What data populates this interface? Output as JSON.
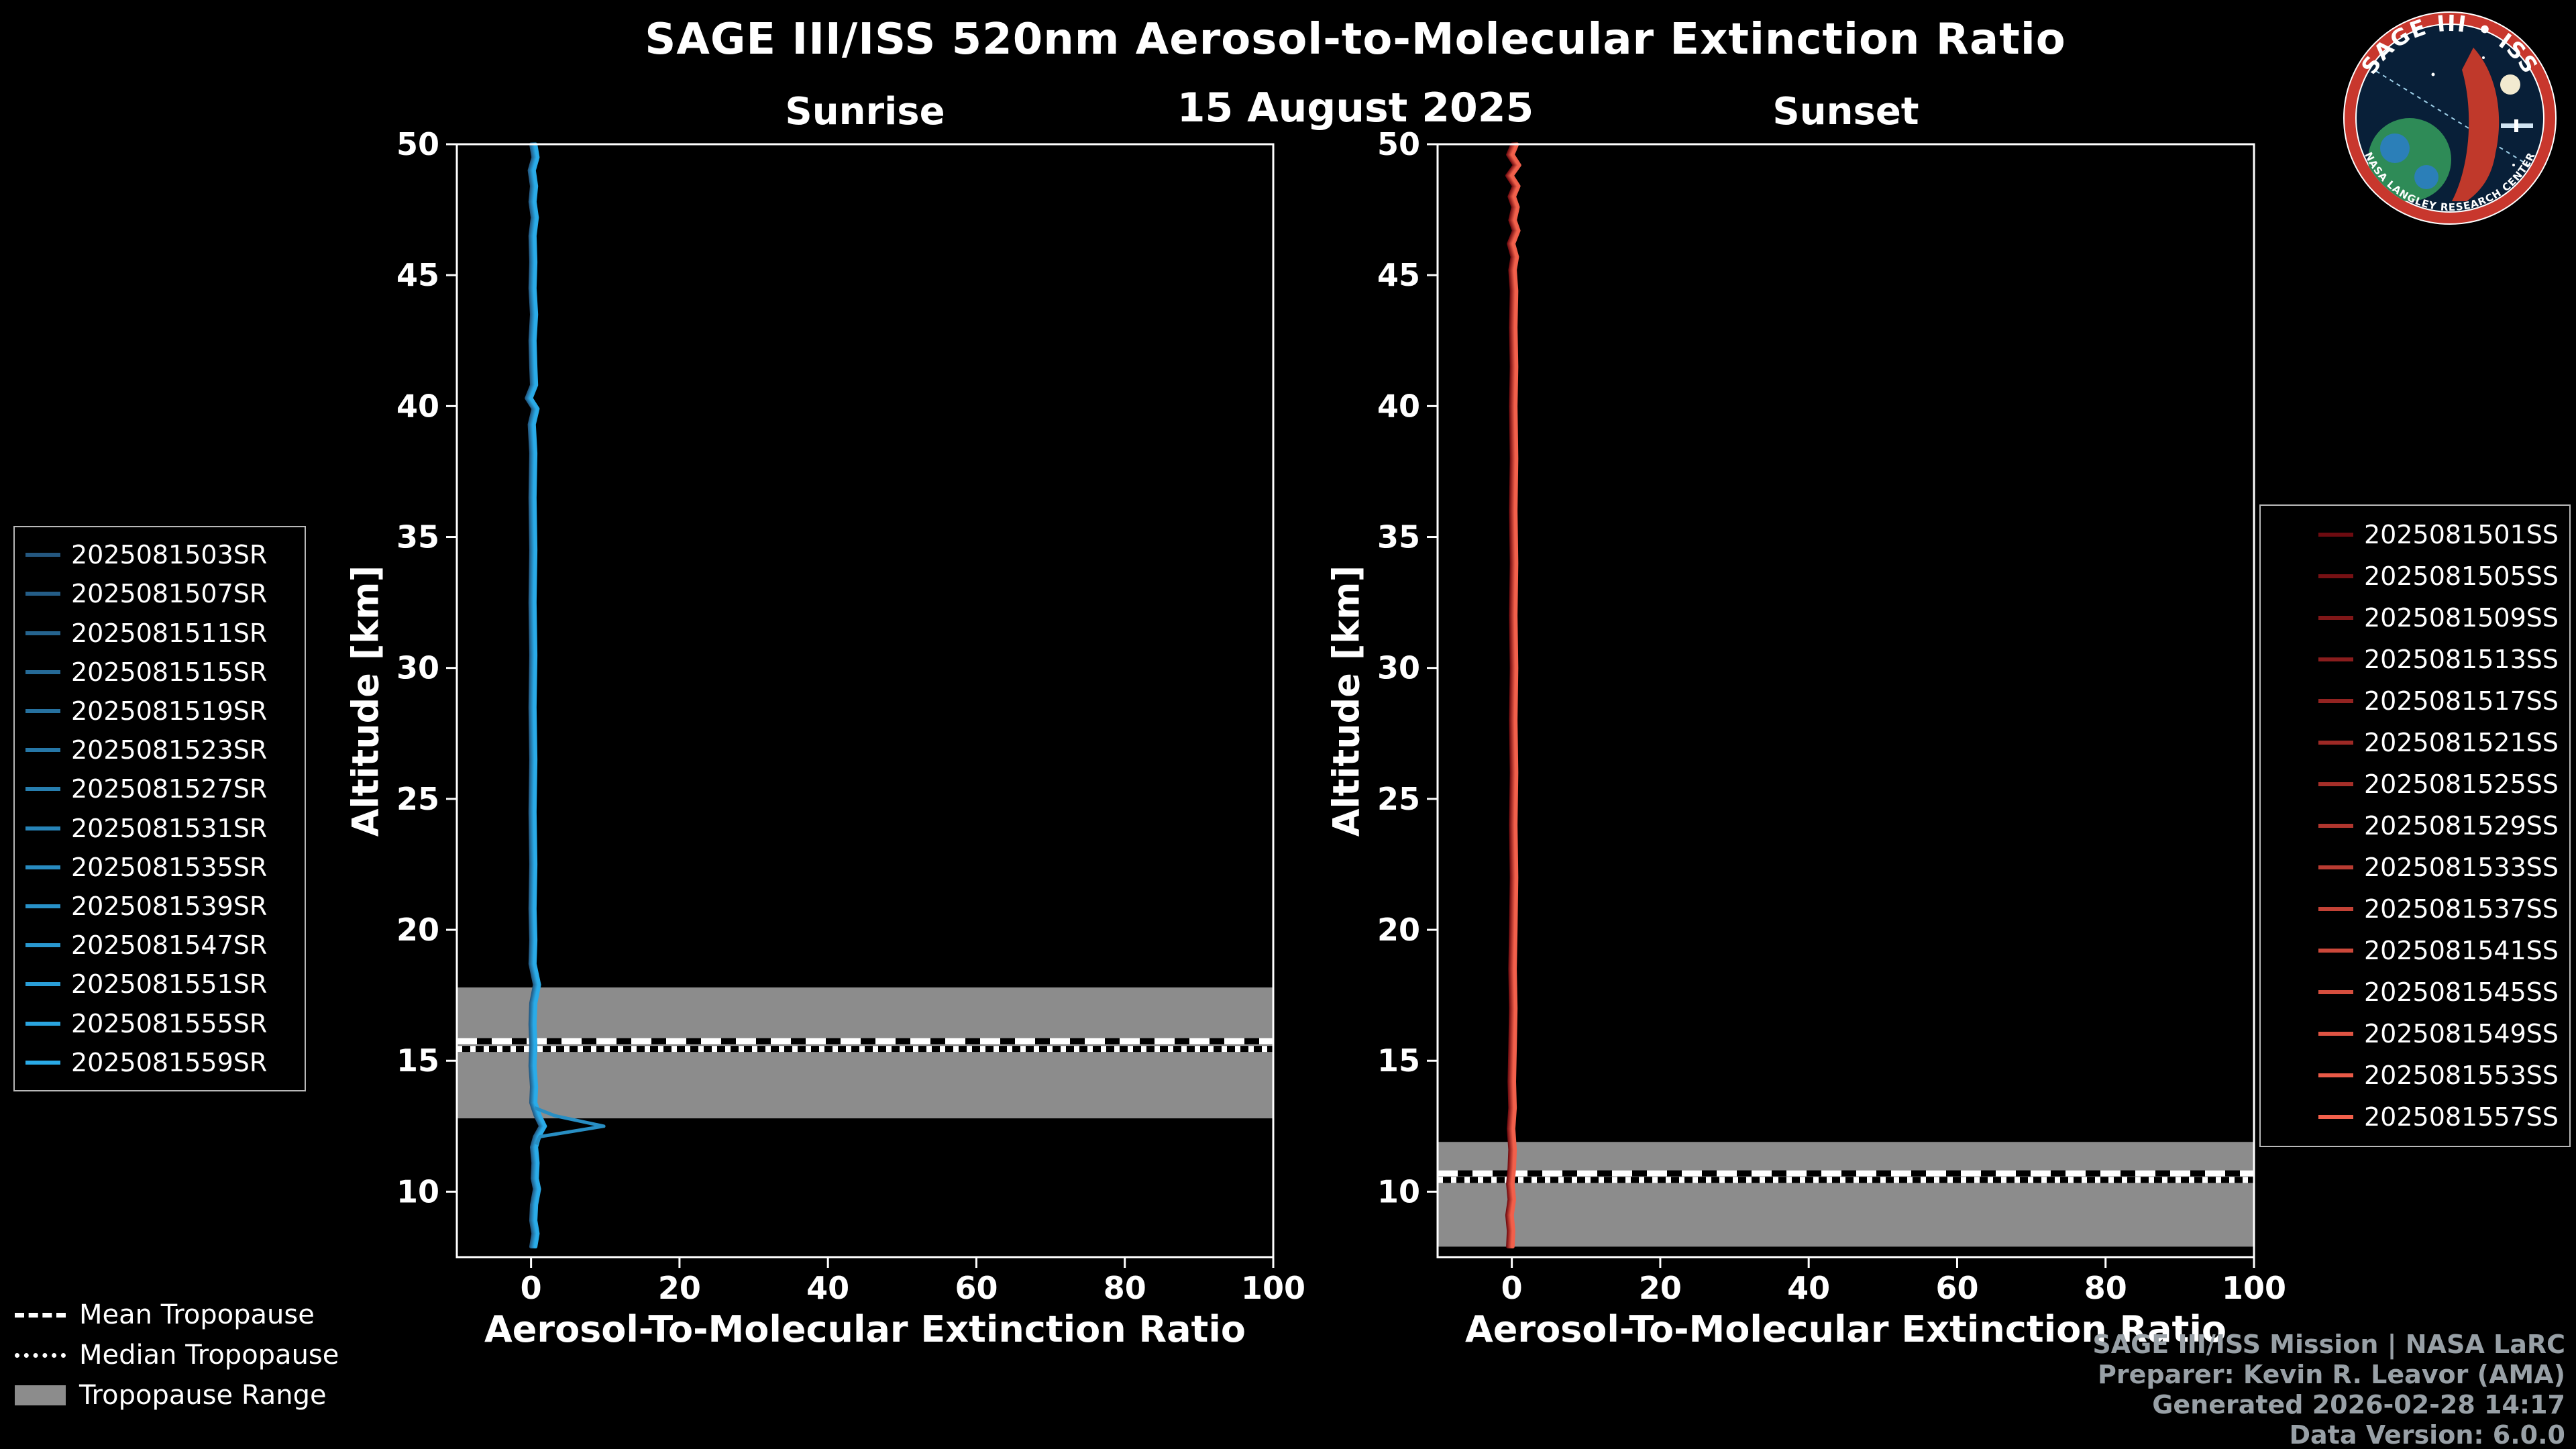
{
  "page": {
    "title": "SAGE III/ISS 520nm Aerosol-to-Molecular Extinction Ratio",
    "date": "15 August 2025"
  },
  "colors": {
    "background": "#000000",
    "foreground": "#ffffff",
    "tropopause_band": "#8c8c8c",
    "footer_text": "#98a0a6",
    "logo_ring": "#c8372d",
    "logo_inner": "#081f38"
  },
  "chart_data": [
    {
      "type": "line",
      "panel": "sunrise",
      "title": "Sunrise",
      "xlabel": "Aerosol-To-Molecular Extinction Ratio",
      "ylabel": "Altitude [km]",
      "xlim": [
        -10,
        100
      ],
      "ylim": [
        7.5,
        50
      ],
      "xticks": [
        0,
        20,
        40,
        60,
        80,
        100
      ],
      "yticks": [
        10,
        15,
        20,
        25,
        30,
        35,
        40,
        45,
        50
      ],
      "grid": false,
      "legend_position": "outside-left",
      "color_start": "#24577f",
      "color_end": "#2aabe8",
      "series": [
        "2025081503SR",
        "2025081507SR",
        "2025081511SR",
        "2025081515SR",
        "2025081519SR",
        "2025081523SR",
        "2025081527SR",
        "2025081531SR",
        "2025081535SR",
        "2025081539SR",
        "2025081547SR",
        "2025081551SR",
        "2025081555SR",
        "2025081559SR"
      ],
      "profile_x_alt": [
        [
          0.3,
          50
        ],
        [
          0.6,
          49.5
        ],
        [
          0.1,
          49
        ],
        [
          0.4,
          48.4
        ],
        [
          0.2,
          47.8
        ],
        [
          0.5,
          47.2
        ],
        [
          0.2,
          46.5
        ],
        [
          0.3,
          45.5
        ],
        [
          0.2,
          44.5
        ],
        [
          0.4,
          43.5
        ],
        [
          0.2,
          42.5
        ],
        [
          0.3,
          41.5
        ],
        [
          0.4,
          40.8
        ],
        [
          -0.3,
          40.3
        ],
        [
          0.6,
          39.9
        ],
        [
          0.1,
          39.3
        ],
        [
          0.3,
          38.2
        ],
        [
          0.2,
          36.5
        ],
        [
          0.3,
          34.5
        ],
        [
          0.2,
          32.5
        ],
        [
          0.3,
          30.5
        ],
        [
          0.2,
          28.5
        ],
        [
          0.3,
          26.5
        ],
        [
          0.2,
          24.5
        ],
        [
          0.3,
          22.5
        ],
        [
          0.2,
          20.8
        ],
        [
          0.3,
          19.6
        ],
        [
          0.2,
          18.7
        ],
        [
          0.8,
          17.9
        ],
        [
          0.3,
          17.2
        ],
        [
          0.2,
          16.4
        ],
        [
          0.3,
          15.6
        ],
        [
          0.2,
          14.8
        ],
        [
          0.4,
          14
        ],
        [
          0.3,
          13.4
        ],
        [
          0.9,
          12.9
        ],
        [
          1.6,
          12.5
        ],
        [
          0.8,
          12.1
        ],
        [
          0.4,
          11.7
        ],
        [
          0.6,
          11.1
        ],
        [
          0.5,
          10.5
        ],
        [
          0.8,
          10.1
        ],
        [
          0.4,
          9.5
        ],
        [
          0.3,
          8.9
        ],
        [
          0.6,
          8.4
        ],
        [
          0.3,
          7.9
        ]
      ],
      "extra_profiles": [
        {
          "color_pos": 0.65,
          "points": [
            [
              0.5,
              13.2
            ],
            [
              3.2,
              12.9
            ],
            [
              9.8,
              12.5
            ],
            [
              5.5,
              12.3
            ],
            [
              1.2,
              12.1
            ],
            [
              0.7,
              11.8
            ]
          ]
        }
      ],
      "tropopause": {
        "range_km": [
          12.8,
          17.8
        ],
        "mean_km": 15.75,
        "median_km": 15.45
      }
    },
    {
      "type": "line",
      "panel": "sunset",
      "title": "Sunset",
      "xlabel": "Aerosol-To-Molecular Extinction Ratio",
      "ylabel": "Altitude [km]",
      "xlim": [
        -10,
        100
      ],
      "ylim": [
        7.5,
        50
      ],
      "xticks": [
        0,
        20,
        40,
        60,
        80,
        100
      ],
      "yticks": [
        10,
        15,
        20,
        25,
        30,
        35,
        40,
        45,
        50
      ],
      "grid": false,
      "legend_position": "outside-right",
      "color_start": "#6d0b10",
      "color_end": "#f2604b",
      "series": [
        "2025081501SS",
        "2025081505SS",
        "2025081509SS",
        "2025081513SS",
        "2025081517SS",
        "2025081521SS",
        "2025081525SS",
        "2025081529SS",
        "2025081533SS",
        "2025081537SS",
        "2025081541SS",
        "2025081545SS",
        "2025081549SS",
        "2025081553SS",
        "2025081557SS"
      ],
      "profile_x_alt": [
        [
          0.4,
          50
        ],
        [
          -0.2,
          49.6
        ],
        [
          0.7,
          49.2
        ],
        [
          -0.3,
          48.8
        ],
        [
          0.6,
          48.4
        ],
        [
          0.0,
          48
        ],
        [
          0.5,
          47.6
        ],
        [
          0.1,
          47.1
        ],
        [
          0.6,
          46.7
        ],
        [
          -0.1,
          46.2
        ],
        [
          0.4,
          45.7
        ],
        [
          0.1,
          45.2
        ],
        [
          0.3,
          44.4
        ],
        [
          0.2,
          43
        ],
        [
          0.3,
          41.5
        ],
        [
          0.2,
          40
        ],
        [
          0.3,
          38
        ],
        [
          0.2,
          36
        ],
        [
          0.3,
          34
        ],
        [
          0.2,
          32
        ],
        [
          0.3,
          30
        ],
        [
          0.2,
          28
        ],
        [
          0.3,
          26
        ],
        [
          0.2,
          24
        ],
        [
          0.3,
          22
        ],
        [
          0.2,
          20
        ],
        [
          0.1,
          18.5
        ],
        [
          0.2,
          17
        ],
        [
          0.1,
          15.5
        ],
        [
          0.0,
          14.2
        ],
        [
          0.1,
          13.2
        ],
        [
          -0.1,
          12.4
        ],
        [
          0.1,
          11.6
        ],
        [
          0.0,
          10.9
        ],
        [
          -0.2,
          10.3
        ],
        [
          0.0,
          9.7
        ],
        [
          -0.3,
          9.1
        ],
        [
          -0.1,
          8.5
        ],
        [
          -0.2,
          7.9
        ]
      ],
      "extra_profiles": [],
      "tropopause": {
        "range_km": [
          7.9,
          11.9
        ],
        "mean_km": 10.7,
        "median_km": 10.45
      }
    }
  ],
  "tropopause_legend": {
    "mean": "Mean Tropopause",
    "median": "Median Tropopause",
    "range": "Tropopause Range"
  },
  "footer": [
    "SAGE III/ISS Mission | NASA LaRC",
    "Preparer: Kevin R. Leavor (AMA)",
    "Generated 2026-02-28 14:17",
    "Data Version: 6.0.0"
  ],
  "logo": {
    "title": "SAGE III • ISS",
    "ring_text": "NASA LANGLEY RESEARCH CENTER"
  }
}
